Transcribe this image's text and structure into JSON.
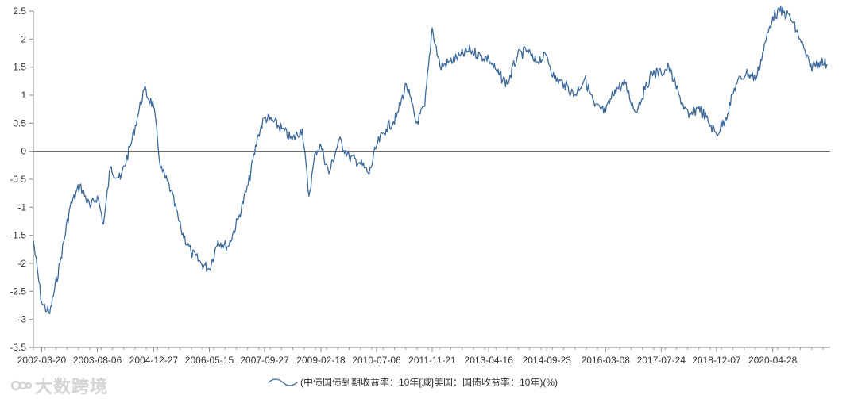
{
  "chart_data": {
    "type": "line",
    "title": "",
    "xlabel": "",
    "ylabel": "",
    "ylim": [
      -3.5,
      2.5
    ],
    "yticks": [
      "2.5",
      "2",
      "1.5",
      "1",
      "0.5",
      "0",
      "-0.5",
      "-1",
      "-1.5",
      "-2",
      "-2.5",
      "-3",
      "-3.5"
    ],
    "xticks": [
      "2002-03-20",
      "2003-08-06",
      "2004-12-27",
      "2006-05-15",
      "2007-09-27",
      "2009-02-18",
      "2010-07-06",
      "2011-11-21",
      "2013-04-16",
      "2014-09-23",
      "2016-03-08",
      "2017-07-24",
      "2018-12-07",
      "2020-04-28"
    ],
    "grid": false,
    "zero_line": true,
    "legend_position": "bottom-center",
    "series": [
      {
        "name": "(中债国债到期收益率：10年[减]美国：国债收益率：10年)(%)",
        "color": "#3d6a9e",
        "x": [
          "2002-01-04",
          "2002-03-20",
          "2002-06-01",
          "2002-09-01",
          "2002-12-01",
          "2003-03-01",
          "2003-06-01",
          "2003-08-06",
          "2003-10-01",
          "2003-12-01",
          "2004-03-01",
          "2004-06-01",
          "2004-08-01",
          "2004-10-01",
          "2004-12-27",
          "2005-03-01",
          "2005-06-01",
          "2005-09-01",
          "2005-12-01",
          "2006-03-01",
          "2006-05-15",
          "2006-08-01",
          "2006-11-01",
          "2007-02-01",
          "2007-05-01",
          "2007-08-01",
          "2007-09-27",
          "2007-12-01",
          "2008-03-01",
          "2008-06-01",
          "2008-09-01",
          "2008-11-01",
          "2009-01-01",
          "2009-02-18",
          "2009-05-01",
          "2009-08-01",
          "2009-11-01",
          "2010-02-01",
          "2010-05-01",
          "2010-07-06",
          "2010-10-01",
          "2011-01-01",
          "2011-04-01",
          "2011-07-01",
          "2011-09-15",
          "2011-11-21",
          "2012-02-01",
          "2012-05-01",
          "2012-08-01",
          "2012-11-01",
          "2013-02-01",
          "2013-04-16",
          "2013-07-01",
          "2013-10-01",
          "2014-01-01",
          "2014-04-01",
          "2014-06-01",
          "2014-09-23",
          "2014-12-01",
          "2015-03-01",
          "2015-06-01",
          "2015-09-01",
          "2015-12-01",
          "2016-03-08",
          "2016-06-01",
          "2016-09-01",
          "2016-12-01",
          "2017-03-01",
          "2017-05-01",
          "2017-07-24",
          "2017-10-01",
          "2018-01-01",
          "2018-04-01",
          "2018-07-01",
          "2018-10-01",
          "2018-12-07",
          "2019-03-01",
          "2019-06-01",
          "2019-09-01",
          "2019-12-01",
          "2020-03-01",
          "2020-04-28",
          "2020-07-01",
          "2020-10-01",
          "2021-01-01",
          "2021-04-01",
          "2021-07-01",
          "2021-09-01"
        ],
        "values": [
          -1.6,
          -2.7,
          -2.9,
          -2.0,
          -1.0,
          -0.6,
          -1.0,
          -0.8,
          -1.3,
          -0.3,
          -0.5,
          0.1,
          0.6,
          1.1,
          0.8,
          -0.3,
          -0.7,
          -1.4,
          -1.8,
          -2.0,
          -2.1,
          -1.6,
          -1.7,
          -1.2,
          -0.6,
          0.3,
          0.6,
          0.55,
          0.4,
          0.2,
          0.4,
          -0.8,
          0.0,
          0.1,
          -0.4,
          0.2,
          -0.1,
          -0.2,
          -0.4,
          0.1,
          0.4,
          0.6,
          1.2,
          0.5,
          0.8,
          2.2,
          1.5,
          1.6,
          1.7,
          1.8,
          1.7,
          1.65,
          1.4,
          1.2,
          1.7,
          1.8,
          1.6,
          1.7,
          1.3,
          1.2,
          1.0,
          1.3,
          0.8,
          0.7,
          1.1,
          1.2,
          0.7,
          1.1,
          1.4,
          1.4,
          1.5,
          1.0,
          0.6,
          0.8,
          0.5,
          0.3,
          0.6,
          1.2,
          1.4,
          1.3,
          2.0,
          2.4,
          2.5,
          2.4,
          2.0,
          1.5,
          1.6,
          1.55
        ]
      }
    ]
  },
  "watermark": {
    "text": "大数跨境"
  }
}
